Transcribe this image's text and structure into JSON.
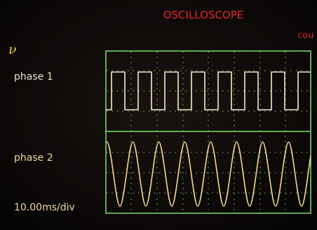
{
  "title": "OSCILLOSCOPE",
  "corner_label": "cou",
  "unit_symbol": "ν",
  "channels": [
    {
      "label": "phase 1"
    },
    {
      "label": "phase 2"
    }
  ],
  "timebase": "10.00ms/div"
}
